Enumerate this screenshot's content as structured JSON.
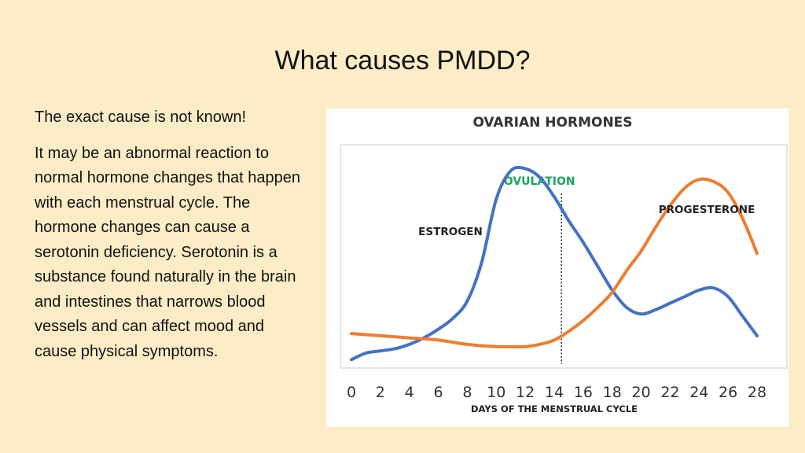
{
  "slide": {
    "title": "What causes PMDD?",
    "paragraphs": [
      "The exact cause is not known!",
      "It may be an abnormal reaction to normal hormone changes that happen with each menstrual cycle. The hormone changes can cause a serotonin deficiency. Serotonin is a substance found naturally in the brain and intestines that narrows blood vessels and can affect mood and cause physical symptoms."
    ]
  },
  "chart_data": {
    "type": "line",
    "title": "OVARIAN HORMONES",
    "xlabel": "DAYS OF THE MENSTRUAL CYCLE",
    "ylabel": "",
    "x_ticks": [
      0,
      2,
      4,
      6,
      8,
      10,
      12,
      14,
      16,
      18,
      20,
      22,
      24,
      26,
      28
    ],
    "xlim": [
      0,
      28
    ],
    "ylim": [
      0,
      100
    ],
    "grid": false,
    "y_axis_numbers_shown": false,
    "annotations": [
      {
        "text": "OVULATION",
        "x": 14.5,
        "style": "dotted-vertical-line",
        "color": "#1aa35a"
      }
    ],
    "series": [
      {
        "name": "ESTROGEN",
        "color": "#4472c4",
        "points": [
          [
            0,
            1
          ],
          [
            1,
            4
          ],
          [
            2,
            5
          ],
          [
            3,
            6
          ],
          [
            4,
            8
          ],
          [
            5,
            11
          ],
          [
            6,
            15
          ],
          [
            7,
            20
          ],
          [
            8,
            28
          ],
          [
            9,
            46
          ],
          [
            10,
            75
          ],
          [
            11,
            88
          ],
          [
            12,
            89
          ],
          [
            13,
            85
          ],
          [
            14,
            76
          ],
          [
            15,
            65
          ],
          [
            16,
            55
          ],
          [
            17,
            44
          ],
          [
            18,
            33
          ],
          [
            19,
            25
          ],
          [
            20,
            22
          ],
          [
            21,
            24
          ],
          [
            22,
            27
          ],
          [
            23,
            30
          ],
          [
            24,
            33
          ],
          [
            25,
            34
          ],
          [
            26,
            30
          ],
          [
            27,
            21
          ],
          [
            28,
            12
          ]
        ]
      },
      {
        "name": "PROGESTERONE",
        "color": "#ed7d31",
        "points": [
          [
            0,
            13
          ],
          [
            2,
            12
          ],
          [
            4,
            11
          ],
          [
            6,
            10
          ],
          [
            8,
            8
          ],
          [
            10,
            7
          ],
          [
            12,
            7
          ],
          [
            13,
            8
          ],
          [
            14,
            10
          ],
          [
            15,
            14
          ],
          [
            16,
            19
          ],
          [
            17,
            25
          ],
          [
            18,
            32
          ],
          [
            19,
            42
          ],
          [
            20,
            51
          ],
          [
            21,
            62
          ],
          [
            22,
            72
          ],
          [
            23,
            80
          ],
          [
            24,
            84
          ],
          [
            25,
            83
          ],
          [
            26,
            78
          ],
          [
            27,
            66
          ],
          [
            28,
            50
          ]
        ]
      }
    ]
  }
}
